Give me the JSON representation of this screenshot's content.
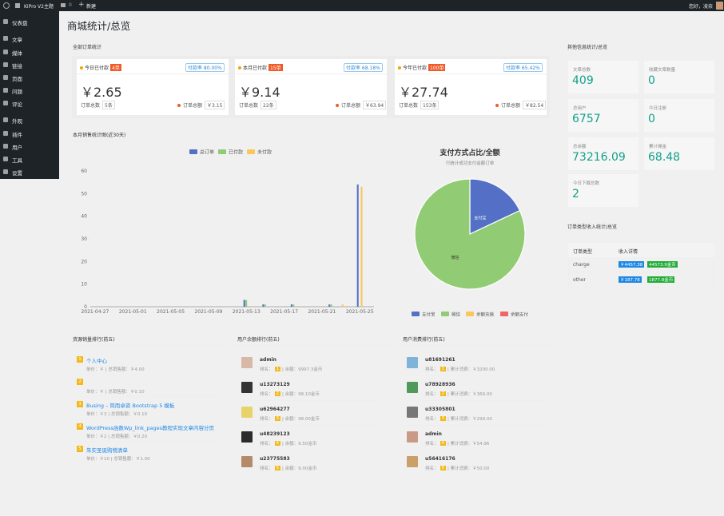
{
  "admin_bar": {
    "site": "KiPro V2主题",
    "comments": "0",
    "new": "新建",
    "greeting": "您好，凌奈"
  },
  "menu": [
    "仪表盘",
    "文章",
    "媒体",
    "链接",
    "页面",
    "问题",
    "评论",
    "外观",
    "插件",
    "用户",
    "工具",
    "设置"
  ],
  "page_title": "商城统计/总览",
  "orders": {
    "title": "全部订单统计",
    "boxes": [
      {
        "label": "今日已付款",
        "count": "4单",
        "rate": "付款率 80.00%",
        "amount": "￥2.65",
        "total_label": "订单总数",
        "total": "5条",
        "sum_label": "订单总额",
        "sum": "￥3.15"
      },
      {
        "label": "本月已付款",
        "count": "15单",
        "rate": "付款率 68.18%",
        "amount": "￥9.14",
        "total_label": "订单总数",
        "total": "22条",
        "sum_label": "订单总额",
        "sum": "￥63.94"
      },
      {
        "label": "今年已付款",
        "count": "100单",
        "rate": "付款率 65.42%",
        "amount": "￥27.74",
        "total_label": "订单总数",
        "total": "153条",
        "sum_label": "订单总额",
        "sum": "￥82.54"
      }
    ]
  },
  "chart_data": [
    {
      "type": "bar",
      "title": "本月销售统计图(近30天)",
      "categories": [
        "2021-04-27",
        null,
        null,
        null,
        "2021-05-01",
        null,
        null,
        null,
        "2021-05-05",
        null,
        null,
        null,
        "2021-05-09",
        null,
        null,
        null,
        "2021-05-13",
        null,
        null,
        null,
        "2021-05-17",
        null,
        null,
        null,
        "2021-05-21",
        null,
        null,
        null,
        "2021-05-25",
        null
      ],
      "series": [
        {
          "name": "总订单",
          "color": "#5470c6",
          "values": [
            0,
            0,
            0,
            0,
            0,
            0,
            0,
            0,
            0,
            0,
            0,
            0,
            0,
            0,
            0,
            0,
            3,
            0,
            1,
            0,
            0,
            1,
            0,
            0,
            0,
            1,
            0,
            0,
            54,
            0
          ]
        },
        {
          "name": "已付款",
          "color": "#91cc75",
          "values": [
            0,
            0,
            0,
            0,
            0,
            0,
            0,
            0,
            0,
            0,
            0,
            0,
            0,
            0,
            0,
            0,
            3,
            0,
            1,
            0,
            0,
            1,
            0,
            0,
            0,
            1,
            0,
            0,
            0,
            0
          ]
        },
        {
          "name": "未付款",
          "color": "#fac858",
          "values": [
            0,
            0,
            0,
            0,
            0,
            0,
            0,
            0,
            0,
            0,
            0,
            0,
            0,
            0,
            0,
            0,
            0,
            0,
            0,
            0,
            0,
            0,
            0,
            0,
            0,
            0,
            1,
            0,
            53,
            0
          ]
        }
      ],
      "ylim": [
        0,
        60
      ],
      "yticks": [
        0,
        10,
        20,
        30,
        40,
        50,
        60
      ],
      "grid": false
    },
    {
      "type": "pie",
      "title": "支付方式占比/全额",
      "subtitle": "只统计成功支付金额订单",
      "categories": [
        "支付宝",
        "微信",
        "余额充值",
        "余额支付"
      ],
      "values": [
        18,
        82,
        0,
        0
      ],
      "colors": [
        "#5470c6",
        "#91cc75",
        "#fac858",
        "#ee6666"
      ]
    }
  ],
  "overview": {
    "title": "其他信息统计/总览",
    "tiles": [
      {
        "label": "文章总数",
        "value": "409"
      },
      {
        "label": "收藏文章数量",
        "value": "0"
      },
      {
        "label": "总用户",
        "value": "6757"
      },
      {
        "label": "今日注册",
        "value": "0"
      },
      {
        "label": "总余额",
        "value": "73216.09"
      },
      {
        "label": "累计佣金",
        "value": "68.48"
      },
      {
        "label": "今日下载总数",
        "value": "2"
      }
    ]
  },
  "income": {
    "title": "订单类型收入统计/总览",
    "headers": [
      "订单类型",
      "收入详情"
    ],
    "rows": [
      {
        "type": "charge",
        "money": "￥4457.38",
        "coins": "44573.9金币"
      },
      {
        "type": "other",
        "money": "￥187.78",
        "coins": "1877.8金币"
      }
    ]
  },
  "rank_resources": {
    "title": "资源销量排行(前五)",
    "items": [
      {
        "rank": "1",
        "name": "个人中心",
        "detail": "单价：￥ | 总销售额：￥4.00"
      },
      {
        "rank": "2",
        "detail": "单价：￥ | 总销售额：￥0.10"
      },
      {
        "rank": "3",
        "name": "Busing – 简而卓资 Bootstrap 5 模板",
        "detail": "单价：￥3 | 总销售额：￥0.10"
      },
      {
        "rank": "4",
        "name": "WordPress函数Wp_link_pages教程实现文章内容分页",
        "detail": "单价：￥2 | 总销售额：￥0.20"
      },
      {
        "rank": "5",
        "name": "朱实圣诞购物清单",
        "detail": "单价：￥10 | 总销售额：￥1.00"
      }
    ]
  },
  "rank_balance": {
    "title": "用户余额排行(前五)",
    "rank_label": "排名：",
    "items": [
      {
        "name": "admin",
        "rank": "1",
        "detail": "| 余额：9997.3金币"
      },
      {
        "name": "u13273129",
        "rank": "2",
        "detail": "| 余额：98.10金币"
      },
      {
        "name": "u62964277",
        "rank": "3",
        "detail": "| 余额：98.00金币"
      },
      {
        "name": "u48239123",
        "rank": "4",
        "detail": "| 余额：9.50金币"
      },
      {
        "name": "u23775583",
        "rank": "5",
        "detail": "| 余额：9.00金币"
      }
    ]
  },
  "rank_spend": {
    "title": "用户消费排行(前五)",
    "rank_label": "排名：",
    "items": [
      {
        "name": "u81691261",
        "rank": "1",
        "detail": "| 累计消费：￥3200.00"
      },
      {
        "name": "u78928936",
        "rank": "2",
        "detail": "| 累计消费：￥369.00"
      },
      {
        "name": "u33305801",
        "rank": "3",
        "detail": "| 累计消费：￥299.00"
      },
      {
        "name": "admin",
        "rank": "4",
        "detail": "| 累计消费：￥54.96"
      },
      {
        "name": "u56416176",
        "rank": "5",
        "detail": "| 累计消费：￥50.00"
      }
    ]
  }
}
